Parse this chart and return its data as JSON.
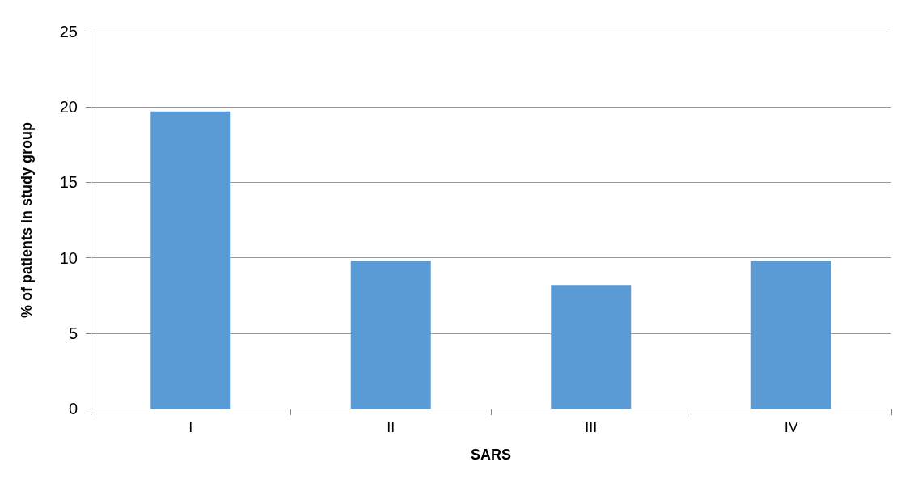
{
  "chart_data": {
    "type": "bar",
    "xlabel": "SARS",
    "ylabel": "% of patients in study group",
    "categories": [
      "I",
      "II",
      "III",
      "IV"
    ],
    "values": [
      19.7,
      9.8,
      8.2,
      9.8
    ],
    "color": "#5b9bd5",
    "ylim": [
      0,
      25
    ],
    "yticks": [
      0,
      5,
      10,
      15,
      20,
      25
    ],
    "grid": "y"
  }
}
